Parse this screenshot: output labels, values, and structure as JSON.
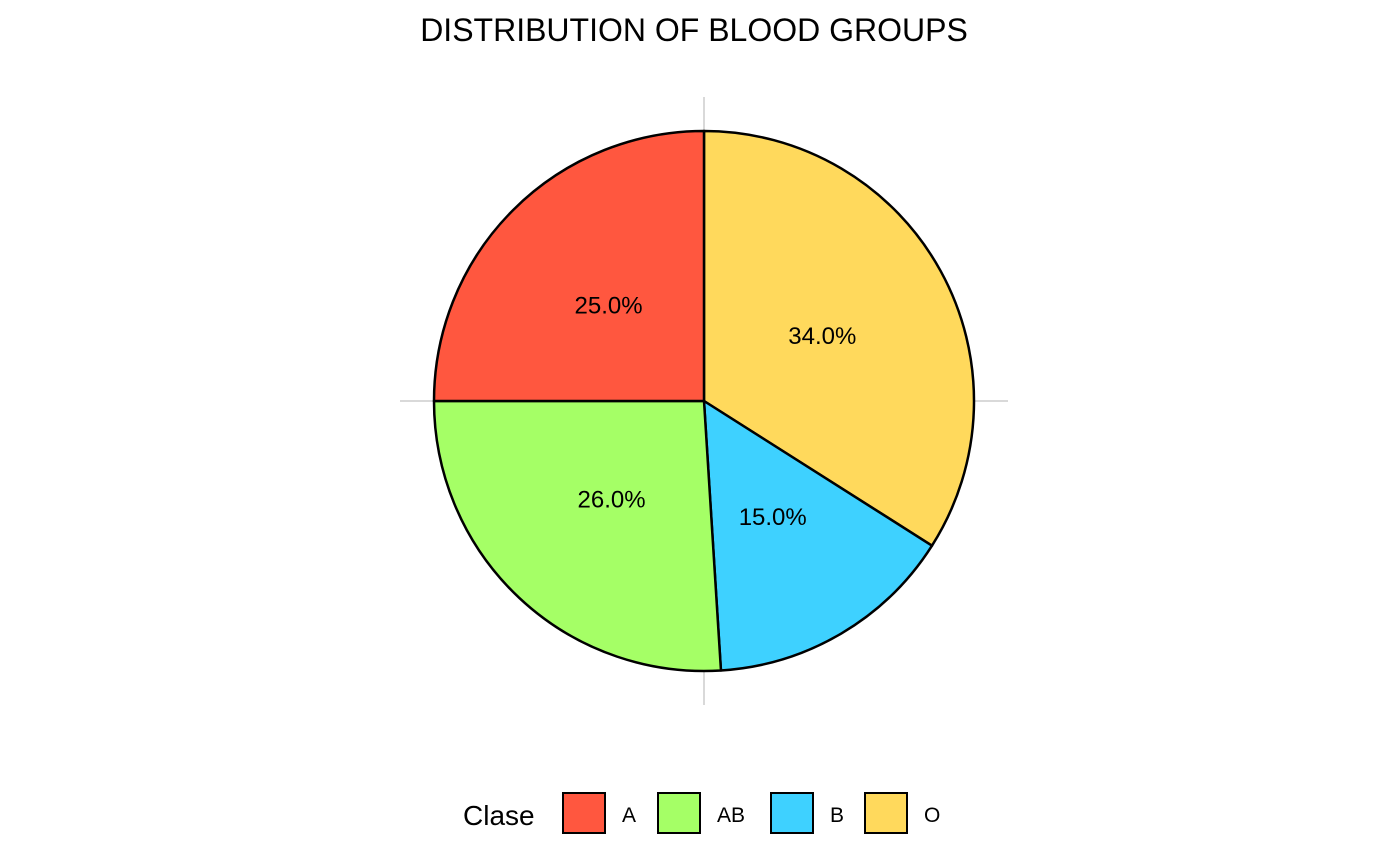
{
  "chart_data": {
    "type": "pie",
    "title": "DISTRIBUTION OF BLOOD GROUPS",
    "direction": "clockwise",
    "start": "top",
    "slices": [
      {
        "name": "O",
        "value": 34.0,
        "label": "34.0%",
        "color": "#FFD95C"
      },
      {
        "name": "B",
        "value": 15.0,
        "label": "15.0%",
        "color": "#3ED1FF"
      },
      {
        "name": "AB",
        "value": 26.0,
        "label": "26.0%",
        "color": "#A5FF66"
      },
      {
        "name": "A",
        "value": 25.0,
        "label": "25.0%",
        "color": "#FF573F"
      }
    ],
    "legend": {
      "title": "Clase",
      "placement": "bottom",
      "entries": [
        {
          "name": "A",
          "color": "#FF573F"
        },
        {
          "name": "AB",
          "color": "#A5FF66"
        },
        {
          "name": "B",
          "color": "#3ED1FF"
        },
        {
          "name": "O",
          "color": "#FFD95C"
        }
      ]
    },
    "outline_color": "#000000",
    "grid_color": "#D9D9D9"
  }
}
